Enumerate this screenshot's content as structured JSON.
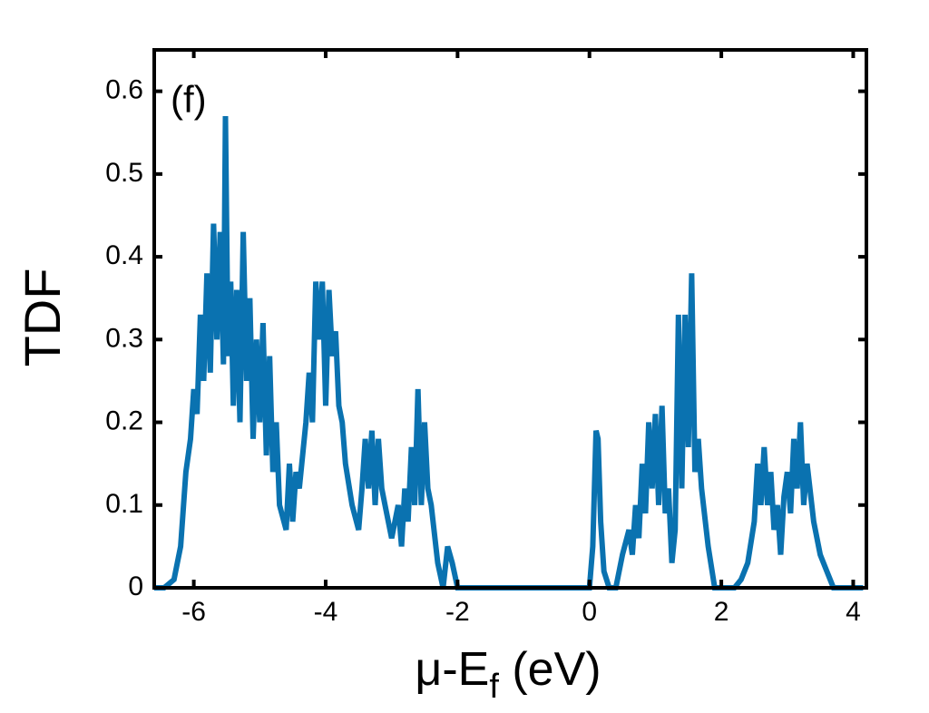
{
  "chart_data": {
    "type": "line",
    "title": "(f)",
    "ylabel": "TDF",
    "xlabel": [
      "μ-E",
      "f",
      " (eV)"
    ],
    "xlim": [
      -6.6,
      4.2
    ],
    "ylim": [
      0,
      0.65
    ],
    "xticks": [
      -6,
      -4,
      -2,
      0,
      2,
      4
    ],
    "yticks": [
      0,
      0.1,
      0.2,
      0.3,
      0.4,
      0.5,
      0.6
    ],
    "color": "#0a72b0",
    "x": [
      -6.6,
      -6.45,
      -6.3,
      -6.2,
      -6.12,
      -6.05,
      -6.0,
      -5.95,
      -5.9,
      -5.85,
      -5.8,
      -5.75,
      -5.7,
      -5.65,
      -5.6,
      -5.55,
      -5.52,
      -5.48,
      -5.44,
      -5.4,
      -5.35,
      -5.3,
      -5.25,
      -5.2,
      -5.15,
      -5.1,
      -5.05,
      -5.0,
      -4.95,
      -4.9,
      -4.85,
      -4.8,
      -4.75,
      -4.7,
      -4.6,
      -4.55,
      -4.5,
      -4.45,
      -4.4,
      -4.3,
      -4.25,
      -4.2,
      -4.15,
      -4.1,
      -4.05,
      -4.0,
      -3.95,
      -3.9,
      -3.85,
      -3.8,
      -3.75,
      -3.7,
      -3.6,
      -3.5,
      -3.45,
      -3.4,
      -3.35,
      -3.3,
      -3.25,
      -3.2,
      -3.15,
      -3.1,
      -3.0,
      -2.9,
      -2.85,
      -2.8,
      -2.75,
      -2.7,
      -2.65,
      -2.6,
      -2.55,
      -2.5,
      -2.45,
      -2.4,
      -2.3,
      -2.22,
      -2.15,
      -2.08,
      -2.0,
      -1.9,
      0.0,
      0.05,
      0.1,
      0.13,
      0.17,
      0.22,
      0.3,
      0.4,
      0.5,
      0.6,
      0.65,
      0.7,
      0.75,
      0.8,
      0.85,
      0.9,
      0.95,
      1.0,
      1.05,
      1.1,
      1.15,
      1.2,
      1.25,
      1.3,
      1.35,
      1.4,
      1.45,
      1.5,
      1.55,
      1.6,
      1.65,
      1.7,
      1.8,
      1.9,
      2.0,
      2.2,
      2.3,
      2.4,
      2.5,
      2.55,
      2.6,
      2.65,
      2.7,
      2.75,
      2.8,
      2.85,
      2.9,
      2.95,
      3.0,
      3.05,
      3.1,
      3.15,
      3.2,
      3.25,
      3.3,
      3.4,
      3.5,
      3.6,
      3.7,
      3.8,
      4.15
    ],
    "values": [
      0,
      0,
      0.01,
      0.05,
      0.14,
      0.18,
      0.24,
      0.21,
      0.33,
      0.25,
      0.38,
      0.26,
      0.44,
      0.3,
      0.43,
      0.27,
      0.57,
      0.28,
      0.37,
      0.22,
      0.36,
      0.2,
      0.43,
      0.25,
      0.35,
      0.18,
      0.3,
      0.2,
      0.32,
      0.16,
      0.28,
      0.14,
      0.2,
      0.1,
      0.07,
      0.15,
      0.08,
      0.14,
      0.12,
      0.2,
      0.26,
      0.2,
      0.37,
      0.3,
      0.37,
      0.22,
      0.36,
      0.28,
      0.31,
      0.22,
      0.2,
      0.15,
      0.1,
      0.07,
      0.12,
      0.18,
      0.12,
      0.19,
      0.1,
      0.18,
      0.12,
      0.1,
      0.06,
      0.1,
      0.05,
      0.12,
      0.08,
      0.17,
      0.1,
      0.24,
      0.1,
      0.2,
      0.12,
      0.1,
      0.03,
      0,
      0.05,
      0.03,
      0,
      0,
      0,
      0.05,
      0.19,
      0.18,
      0.08,
      0.02,
      0,
      0,
      0.04,
      0.07,
      0.04,
      0.1,
      0.06,
      0.15,
      0.09,
      0.2,
      0.12,
      0.21,
      0.1,
      0.22,
      0.09,
      0.12,
      0.03,
      0.07,
      0.33,
      0.12,
      0.33,
      0.17,
      0.38,
      0.14,
      0.18,
      0.12,
      0.05,
      0,
      0,
      0,
      0.01,
      0.03,
      0.08,
      0.15,
      0.1,
      0.17,
      0.1,
      0.14,
      0.07,
      0.1,
      0.04,
      0.11,
      0.14,
      0.09,
      0.18,
      0.12,
      0.2,
      0.1,
      0.15,
      0.08,
      0.04,
      0.02,
      0,
      0,
      0
    ]
  }
}
